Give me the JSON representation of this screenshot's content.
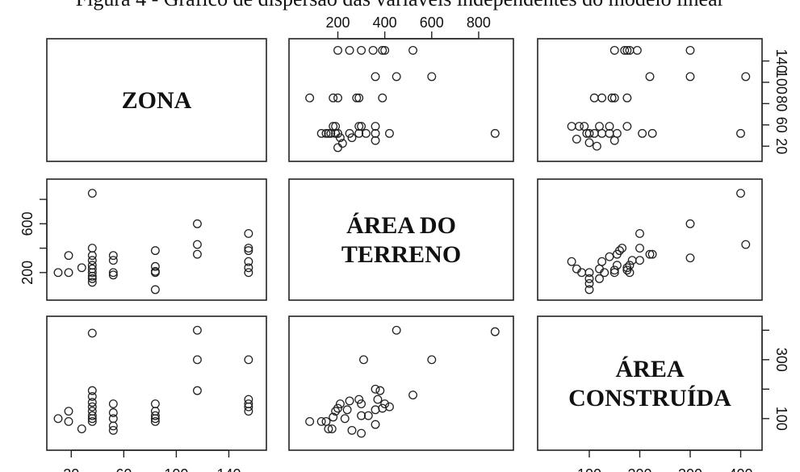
{
  "caption": "Figura 4 - Gráfico de dispersão das variáveis independentes do modelo linear",
  "chart_data": {
    "type": "scatter",
    "title": "Figura 4 - Gráfico de dispersão das variáveis independentes do modelo linear",
    "variables": [
      {
        "key": "zona",
        "label_lines": [
          "ZONA"
        ],
        "range": [
          10,
          160
        ],
        "ticks": [
          20,
          60,
          100,
          140
        ]
      },
      {
        "key": "area_terreno",
        "label_lines": [
          "ÁREA DO",
          "TERRENO"
        ],
        "range": [
          40,
          900
        ],
        "ticks": [
          200,
          400,
          600,
          800
        ]
      },
      {
        "key": "area_construida",
        "label_lines": [
          "ÁREA",
          "CONSTRUÍDA"
        ],
        "range": [
          20,
          420
        ],
        "ticks": [
          100,
          200,
          300,
          400
        ]
      }
    ],
    "tick_labels": {
      "bottom_zona": [
        "20",
        "60",
        "100",
        "140"
      ],
      "top_area_terreno": [
        "200",
        "400",
        "600",
        "800"
      ],
      "left_area_terreno": [
        "200",
        "600"
      ],
      "right_zona": [
        "20",
        "80",
        "140"
      ],
      "right_zona_minor": [
        "60",
        "100"
      ],
      "right_area_construida": [
        "100",
        "300"
      ],
      "bottom_area_construida": [
        "100",
        "200",
        "300",
        "400"
      ]
    },
    "pairs": [
      {
        "x": "area_terreno",
        "y": "zona",
        "points": [
          [
            200,
            155
          ],
          [
            250,
            155
          ],
          [
            300,
            155
          ],
          [
            350,
            155
          ],
          [
            390,
            155
          ],
          [
            400,
            155
          ],
          [
            520,
            155
          ],
          [
            360,
            118
          ],
          [
            450,
            118
          ],
          [
            600,
            118
          ],
          [
            80,
            88
          ],
          [
            180,
            88
          ],
          [
            200,
            88
          ],
          [
            280,
            88
          ],
          [
            290,
            88
          ],
          [
            390,
            88
          ],
          [
            180,
            48
          ],
          [
            190,
            48
          ],
          [
            290,
            48
          ],
          [
            300,
            48
          ],
          [
            360,
            48
          ],
          [
            130,
            38
          ],
          [
            150,
            38
          ],
          [
            160,
            38
          ],
          [
            170,
            38
          ],
          [
            190,
            38
          ],
          [
            200,
            38
          ],
          [
            250,
            38
          ],
          [
            290,
            38
          ],
          [
            320,
            38
          ],
          [
            360,
            38
          ],
          [
            420,
            38
          ],
          [
            870,
            38
          ],
          [
            210,
            32
          ],
          [
            260,
            32
          ],
          [
            360,
            28
          ],
          [
            220,
            24
          ],
          [
            200,
            18
          ]
        ]
      },
      {
        "x": "area_construida",
        "y": "zona",
        "points": [
          [
            150,
            155
          ],
          [
            170,
            155
          ],
          [
            175,
            155
          ],
          [
            180,
            155
          ],
          [
            195,
            155
          ],
          [
            300,
            155
          ],
          [
            220,
            118
          ],
          [
            300,
            118
          ],
          [
            410,
            118
          ],
          [
            110,
            88
          ],
          [
            125,
            88
          ],
          [
            145,
            88
          ],
          [
            150,
            88
          ],
          [
            175,
            88
          ],
          [
            65,
            48
          ],
          [
            80,
            48
          ],
          [
            90,
            48
          ],
          [
            120,
            48
          ],
          [
            140,
            48
          ],
          [
            175,
            48
          ],
          [
            95,
            38
          ],
          [
            100,
            38
          ],
          [
            110,
            38
          ],
          [
            125,
            38
          ],
          [
            140,
            38
          ],
          [
            155,
            38
          ],
          [
            205,
            38
          ],
          [
            225,
            38
          ],
          [
            400,
            38
          ],
          [
            75,
            30
          ],
          [
            150,
            28
          ],
          [
            100,
            25
          ],
          [
            115,
            20
          ]
        ]
      },
      {
        "x": "zona",
        "y": "area_terreno",
        "points": [
          [
            10,
            200
          ],
          [
            18,
            200
          ],
          [
            18,
            340
          ],
          [
            28,
            240
          ],
          [
            36,
            120
          ],
          [
            36,
            150
          ],
          [
            36,
            170
          ],
          [
            36,
            200
          ],
          [
            36,
            230
          ],
          [
            36,
            260
          ],
          [
            36,
            300
          ],
          [
            36,
            340
          ],
          [
            36,
            400
          ],
          [
            36,
            850
          ],
          [
            52,
            180
          ],
          [
            52,
            200
          ],
          [
            52,
            300
          ],
          [
            52,
            340
          ],
          [
            84,
            60
          ],
          [
            84,
            200
          ],
          [
            84,
            210
          ],
          [
            84,
            250
          ],
          [
            84,
            380
          ],
          [
            116,
            350
          ],
          [
            116,
            430
          ],
          [
            116,
            600
          ],
          [
            155,
            200
          ],
          [
            155,
            240
          ],
          [
            155,
            290
          ],
          [
            155,
            380
          ],
          [
            155,
            400
          ],
          [
            155,
            520
          ]
        ]
      },
      {
        "x": "area_construida",
        "y": "area_terreno",
        "points": [
          [
            65,
            290
          ],
          [
            75,
            230
          ],
          [
            85,
            200
          ],
          [
            100,
            60
          ],
          [
            100,
            110
          ],
          [
            100,
            150
          ],
          [
            100,
            200
          ],
          [
            120,
            150
          ],
          [
            120,
            230
          ],
          [
            125,
            290
          ],
          [
            130,
            200
          ],
          [
            140,
            330
          ],
          [
            150,
            200
          ],
          [
            150,
            220
          ],
          [
            155,
            260
          ],
          [
            155,
            350
          ],
          [
            160,
            380
          ],
          [
            165,
            400
          ],
          [
            175,
            220
          ],
          [
            175,
            240
          ],
          [
            180,
            200
          ],
          [
            180,
            260
          ],
          [
            185,
            300
          ],
          [
            200,
            300
          ],
          [
            200,
            400
          ],
          [
            200,
            520
          ],
          [
            220,
            350
          ],
          [
            225,
            350
          ],
          [
            300,
            320
          ],
          [
            300,
            600
          ],
          [
            400,
            850
          ],
          [
            410,
            430
          ]
        ]
      },
      {
        "x": "zona",
        "y": "area_construida",
        "points": [
          [
            10,
            100
          ],
          [
            18,
            90
          ],
          [
            18,
            125
          ],
          [
            28,
            65
          ],
          [
            36,
            90
          ],
          [
            36,
            100
          ],
          [
            36,
            110
          ],
          [
            36,
            125
          ],
          [
            36,
            140
          ],
          [
            36,
            155
          ],
          [
            36,
            175
          ],
          [
            36,
            195
          ],
          [
            36,
            390
          ],
          [
            52,
            60
          ],
          [
            52,
            75
          ],
          [
            52,
            100
          ],
          [
            52,
            120
          ],
          [
            52,
            150
          ],
          [
            84,
            90
          ],
          [
            84,
            100
          ],
          [
            84,
            110
          ],
          [
            84,
            125
          ],
          [
            84,
            150
          ],
          [
            116,
            195
          ],
          [
            116,
            300
          ],
          [
            116,
            400
          ],
          [
            155,
            125
          ],
          [
            155,
            140
          ],
          [
            155,
            150
          ],
          [
            155,
            165
          ],
          [
            155,
            300
          ]
        ]
      },
      {
        "x": "area_terreno",
        "y": "area_construida",
        "points": [
          [
            80,
            90
          ],
          [
            130,
            90
          ],
          [
            150,
            90
          ],
          [
            160,
            65
          ],
          [
            175,
            65
          ],
          [
            180,
            105
          ],
          [
            190,
            125
          ],
          [
            200,
            135
          ],
          [
            210,
            150
          ],
          [
            230,
            100
          ],
          [
            240,
            130
          ],
          [
            250,
            160
          ],
          [
            260,
            60
          ],
          [
            290,
            165
          ],
          [
            300,
            50
          ],
          [
            300,
            110
          ],
          [
            300,
            150
          ],
          [
            310,
            300
          ],
          [
            330,
            110
          ],
          [
            360,
            200
          ],
          [
            360,
            80
          ],
          [
            360,
            130
          ],
          [
            370,
            165
          ],
          [
            380,
            195
          ],
          [
            390,
            135
          ],
          [
            400,
            150
          ],
          [
            420,
            140
          ],
          [
            520,
            180
          ],
          [
            600,
            300
          ],
          [
            450,
            400
          ],
          [
            870,
            395
          ]
        ]
      }
    ]
  }
}
